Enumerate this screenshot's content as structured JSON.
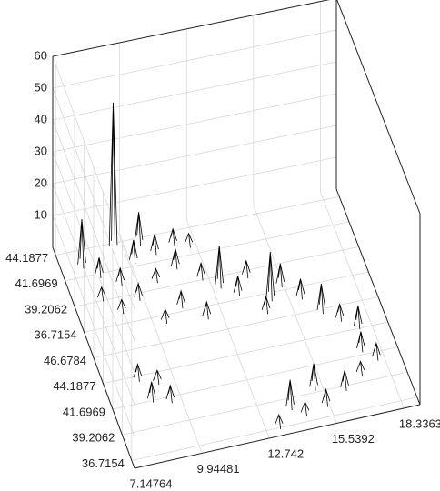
{
  "chart_data": {
    "type": "surface",
    "xlim": [
      7.14764,
      19
    ],
    "xticks": [
      7.14764,
      9.94481,
      12.742,
      15.5392,
      18.3363
    ],
    "ylim": [
      -0.3,
      8.3
    ],
    "yticks": [
      {
        "value": 0,
        "label": "44.1877"
      },
      {
        "value": 1,
        "label": "41.6969"
      },
      {
        "value": 2,
        "label": "39.2062"
      },
      {
        "value": 3,
        "label": "36.7154"
      },
      {
        "value": 4,
        "label": "46.6784"
      },
      {
        "value": 5,
        "label": "44.1877"
      },
      {
        "value": 6,
        "label": "41.6969"
      },
      {
        "value": 7,
        "label": "39.2062"
      },
      {
        "value": 8,
        "label": "36.7154"
      }
    ],
    "zlim": [
      0,
      60
    ],
    "zticks": [
      10,
      20,
      30,
      40,
      50,
      60
    ],
    "grid": true,
    "color": "#000000",
    "x": [
      8.04,
      9.52,
      10.58,
      8.57,
      9.28,
      10.11,
      11.06,
      11.89,
      8.33,
      9.76,
      10.7,
      11.65,
      12.48,
      8.93,
      12.48,
      13.07,
      13.67,
      14.26,
      14.85,
      15.44,
      14.5,
      16.04,
      16.63,
      17.22,
      17.81,
      17.58,
      18.05,
      17.22,
      16.39,
      15.44,
      14.5,
      15.21,
      8.57,
      9.28,
      8.81,
      9.52,
      14.02,
      13.31,
      11.3,
      10.47,
      12.13
    ],
    "y": [
      0.51,
      0.09,
      0.1,
      0.99,
      1.42,
      0.73,
      0.56,
      0.39,
      1.85,
      2.11,
      1.59,
      1.25,
      0.56,
      2.45,
      1.85,
      2.28,
      2.71,
      2.11,
      3.14,
      2.71,
      3.57,
      3.31,
      4.0,
      4.43,
      4.86,
      5.72,
      6.15,
      6.58,
      7.01,
      7.44,
      7.61,
      6.75,
      5.03,
      5.29,
      5.89,
      6.06,
      7.27,
      7.87,
      2.71,
      3.14,
      3.31
    ],
    "z": [
      14,
      45,
      9,
      5,
      4,
      6,
      5,
      4,
      3,
      4,
      3,
      5,
      3,
      3,
      4,
      12,
      5,
      4,
      14,
      6,
      4,
      5,
      8,
      4,
      6,
      5,
      4,
      3,
      5,
      4,
      3,
      7,
      4,
      3,
      5,
      4,
      8,
      3,
      4,
      3,
      4
    ]
  }
}
